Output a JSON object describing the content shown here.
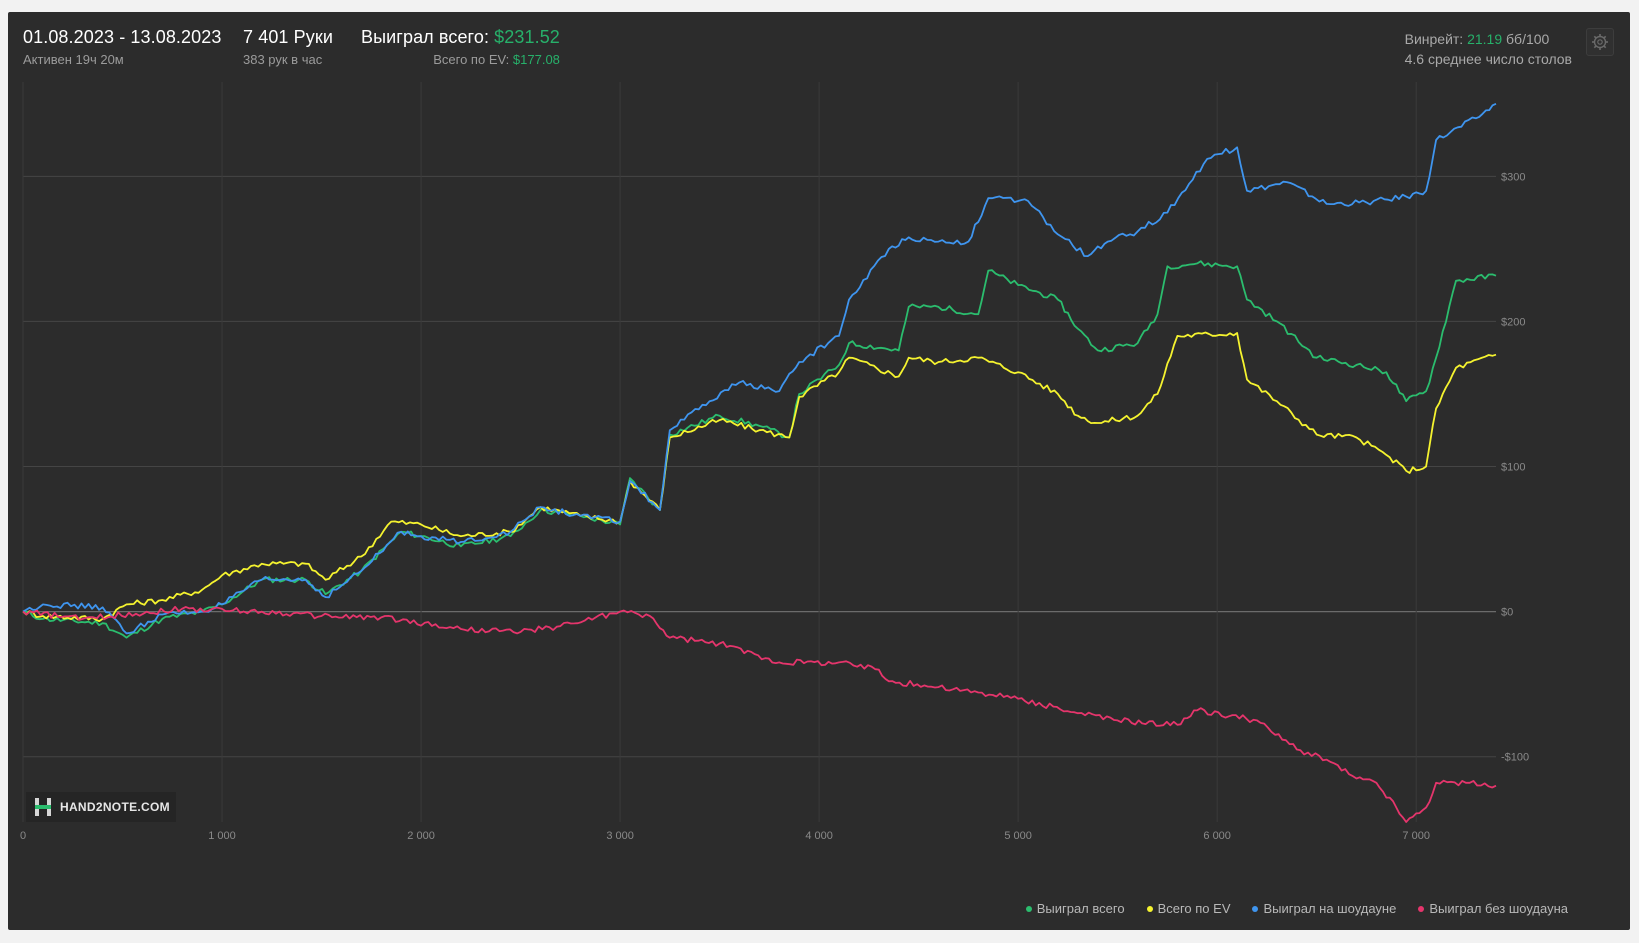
{
  "header": {
    "date_range": "01.08.2023 - 13.08.2023",
    "active_time": "Активен 19ч 20м",
    "hands": "7 401 Руки",
    "hands_per_hour": "383 рук в час",
    "won_total_label": "Выиграл всего:",
    "won_total_value": "$231.52",
    "ev_total_label": "Всего по EV:",
    "ev_total_value": "$177.08",
    "winrate_label": "Винрейт:",
    "winrate_value": "21.19",
    "winrate_unit": "бб/100",
    "avg_tables": "4.6 среднее число столов"
  },
  "logo": {
    "text": "HAND2NOTE.COM"
  },
  "icons": {
    "settings": "gear-icon",
    "logo": "hand2note-logo-icon"
  },
  "chart_data": {
    "type": "line",
    "xlim": [
      0,
      7401
    ],
    "ylim": [
      -145,
      365
    ],
    "x_ticks": [
      0,
      1000,
      2000,
      3000,
      4000,
      5000,
      6000,
      7000
    ],
    "x_tick_labels": [
      "0",
      "1 000",
      "2 000",
      "3 000",
      "4 000",
      "5 000",
      "6 000",
      "7 000"
    ],
    "y_ticks": [
      300,
      200,
      100,
      0,
      -100
    ],
    "y_tick_labels": [
      "$300",
      "$200",
      "$100",
      "$0",
      "-$100"
    ],
    "grid": true,
    "legend_position": "bottom-right",
    "series": [
      {
        "name": "Выиграл всего",
        "color": "#2bbd6e",
        "x": [
          0,
          100,
          400,
          520,
          700,
          900,
          1000,
          1200,
          1420,
          1520,
          1700,
          1900,
          2000,
          2200,
          2450,
          2600,
          2800,
          3000,
          3050,
          3200,
          3250,
          3500,
          3700,
          3850,
          3900,
          4100,
          4150,
          4400,
          4450,
          4600,
          4800,
          4850,
          5000,
          5200,
          5300,
          5400,
          5600,
          5700,
          5750,
          5900,
          6100,
          6150,
          6300,
          6500,
          6700,
          6850,
          6950,
          7050,
          7100,
          7200,
          7401
        ],
        "values": [
          0,
          -5,
          -8,
          -18,
          -5,
          0,
          5,
          22,
          22,
          12,
          28,
          55,
          52,
          45,
          52,
          70,
          66,
          60,
          92,
          70,
          122,
          135,
          128,
          120,
          150,
          170,
          185,
          180,
          210,
          210,
          205,
          235,
          225,
          215,
          195,
          180,
          185,
          205,
          238,
          240,
          238,
          215,
          200,
          175,
          170,
          165,
          145,
          152,
          175,
          228,
          231.52
        ]
      },
      {
        "name": "Всего по EV",
        "color": "#f5f32f",
        "x": [
          0,
          100,
          400,
          520,
          700,
          900,
          1000,
          1200,
          1420,
          1520,
          1700,
          1850,
          2000,
          2200,
          2450,
          2600,
          2800,
          3000,
          3050,
          3200,
          3250,
          3500,
          3700,
          3850,
          3900,
          4100,
          4150,
          4400,
          4450,
          4600,
          4800,
          5000,
          5200,
          5300,
          5400,
          5600,
          5700,
          5800,
          6100,
          6150,
          6300,
          6500,
          6700,
          6850,
          6950,
          7050,
          7100,
          7200,
          7401
        ],
        "values": [
          0,
          -3,
          -5,
          5,
          8,
          15,
          25,
          33,
          33,
          22,
          38,
          62,
          60,
          52,
          55,
          72,
          66,
          62,
          90,
          70,
          120,
          132,
          125,
          120,
          148,
          165,
          175,
          162,
          175,
          172,
          175,
          165,
          150,
          135,
          130,
          135,
          150,
          190,
          192,
          160,
          145,
          122,
          120,
          108,
          97,
          100,
          140,
          168,
          177.08
        ]
      },
      {
        "name": "Выиграл на шоудауне",
        "color": "#3f95ef",
        "x": [
          0,
          100,
          400,
          520,
          700,
          900,
          1000,
          1200,
          1420,
          1520,
          1700,
          1900,
          2000,
          2200,
          2450,
          2600,
          2800,
          3000,
          3050,
          3200,
          3250,
          3450,
          3600,
          3800,
          3900,
          4100,
          4150,
          4350,
          4450,
          4600,
          4750,
          4850,
          5000,
          5050,
          5200,
          5350,
          5450,
          5600,
          5750,
          5950,
          6100,
          6150,
          6350,
          6550,
          6750,
          6950,
          7050,
          7100,
          7300,
          7401
        ],
        "values": [
          0,
          5,
          3,
          -15,
          -2,
          0,
          5,
          22,
          22,
          10,
          28,
          55,
          52,
          48,
          55,
          72,
          66,
          62,
          90,
          70,
          125,
          145,
          158,
          152,
          172,
          190,
          215,
          250,
          258,
          255,
          255,
          285,
          283,
          283,
          260,
          245,
          255,
          262,
          275,
          312,
          320,
          290,
          296,
          281,
          282,
          286,
          290,
          325,
          340,
          350
        ]
      },
      {
        "name": "Выиграл без шоудауна",
        "color": "#e5356c",
        "x": [
          0,
          300,
          800,
          1200,
          1500,
          1800,
          2200,
          2500,
          2700,
          3000,
          3150,
          3250,
          3500,
          3800,
          4100,
          4300,
          4350,
          4600,
          5000,
          5300,
          5500,
          5800,
          5900,
          6200,
          6400,
          6550,
          6700,
          6800,
          6900,
          6950,
          7050,
          7100,
          7250,
          7401
        ],
        "values": [
          0,
          -5,
          2,
          0,
          -3,
          -4,
          -12,
          -14,
          -10,
          0,
          -3,
          -18,
          -22,
          -35,
          -35,
          -40,
          -48,
          -52,
          -60,
          -70,
          -75,
          -78,
          -68,
          -75,
          -95,
          -102,
          -115,
          -118,
          -135,
          -145,
          -135,
          -118,
          -118,
          -120
        ]
      }
    ]
  }
}
